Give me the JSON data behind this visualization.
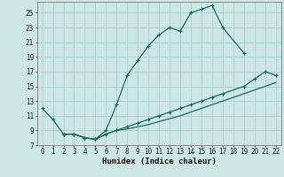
{
  "xlabel": "Humidex (Indice chaleur)",
  "bg_color": "#cde8e4",
  "grid_color": "#aacfca",
  "line_color": "#1a6b5a",
  "xlim": [
    -0.5,
    22.5
  ],
  "ylim": [
    7,
    26.5
  ],
  "xticks": [
    0,
    1,
    2,
    3,
    4,
    5,
    6,
    7,
    8,
    9,
    10,
    11,
    12,
    13,
    14,
    15,
    16,
    17,
    18,
    19,
    20,
    21,
    22
  ],
  "yticks": [
    7,
    9,
    11,
    13,
    15,
    17,
    19,
    21,
    23,
    25
  ],
  "line1_x": [
    0,
    1,
    2,
    3,
    4,
    5,
    6,
    7,
    8,
    9,
    10,
    11,
    12,
    13,
    14,
    15,
    16,
    17,
    19
  ],
  "line1_y": [
    12,
    10.5,
    8.5,
    8.5,
    8.0,
    7.8,
    9.0,
    12.5,
    16.5,
    18.5,
    20.5,
    22.0,
    23.0,
    22.5,
    25.0,
    25.5,
    26.0,
    23.0,
    19.5
  ],
  "line2_x": [
    2,
    3,
    4,
    5,
    6,
    7,
    8,
    9,
    10,
    11,
    12,
    13,
    14,
    15,
    16,
    17,
    19,
    20,
    21,
    22
  ],
  "line2_y": [
    8.5,
    8.5,
    8.0,
    7.8,
    8.5,
    9.0,
    9.5,
    10.0,
    10.5,
    11.0,
    11.5,
    12.0,
    12.5,
    13.0,
    13.5,
    14.0,
    15.0,
    16.0,
    17.0,
    16.5
  ],
  "line3_x": [
    2,
    3,
    4,
    5,
    6,
    7,
    8,
    9,
    10,
    11,
    12,
    13,
    14,
    15,
    16,
    17,
    19,
    20,
    21,
    22
  ],
  "line3_y": [
    8.5,
    8.5,
    8.0,
    7.8,
    8.5,
    9.0,
    9.2,
    9.5,
    9.8,
    10.2,
    10.6,
    11.0,
    11.5,
    12.0,
    12.5,
    13.0,
    14.0,
    14.5,
    15.0,
    15.5
  ]
}
